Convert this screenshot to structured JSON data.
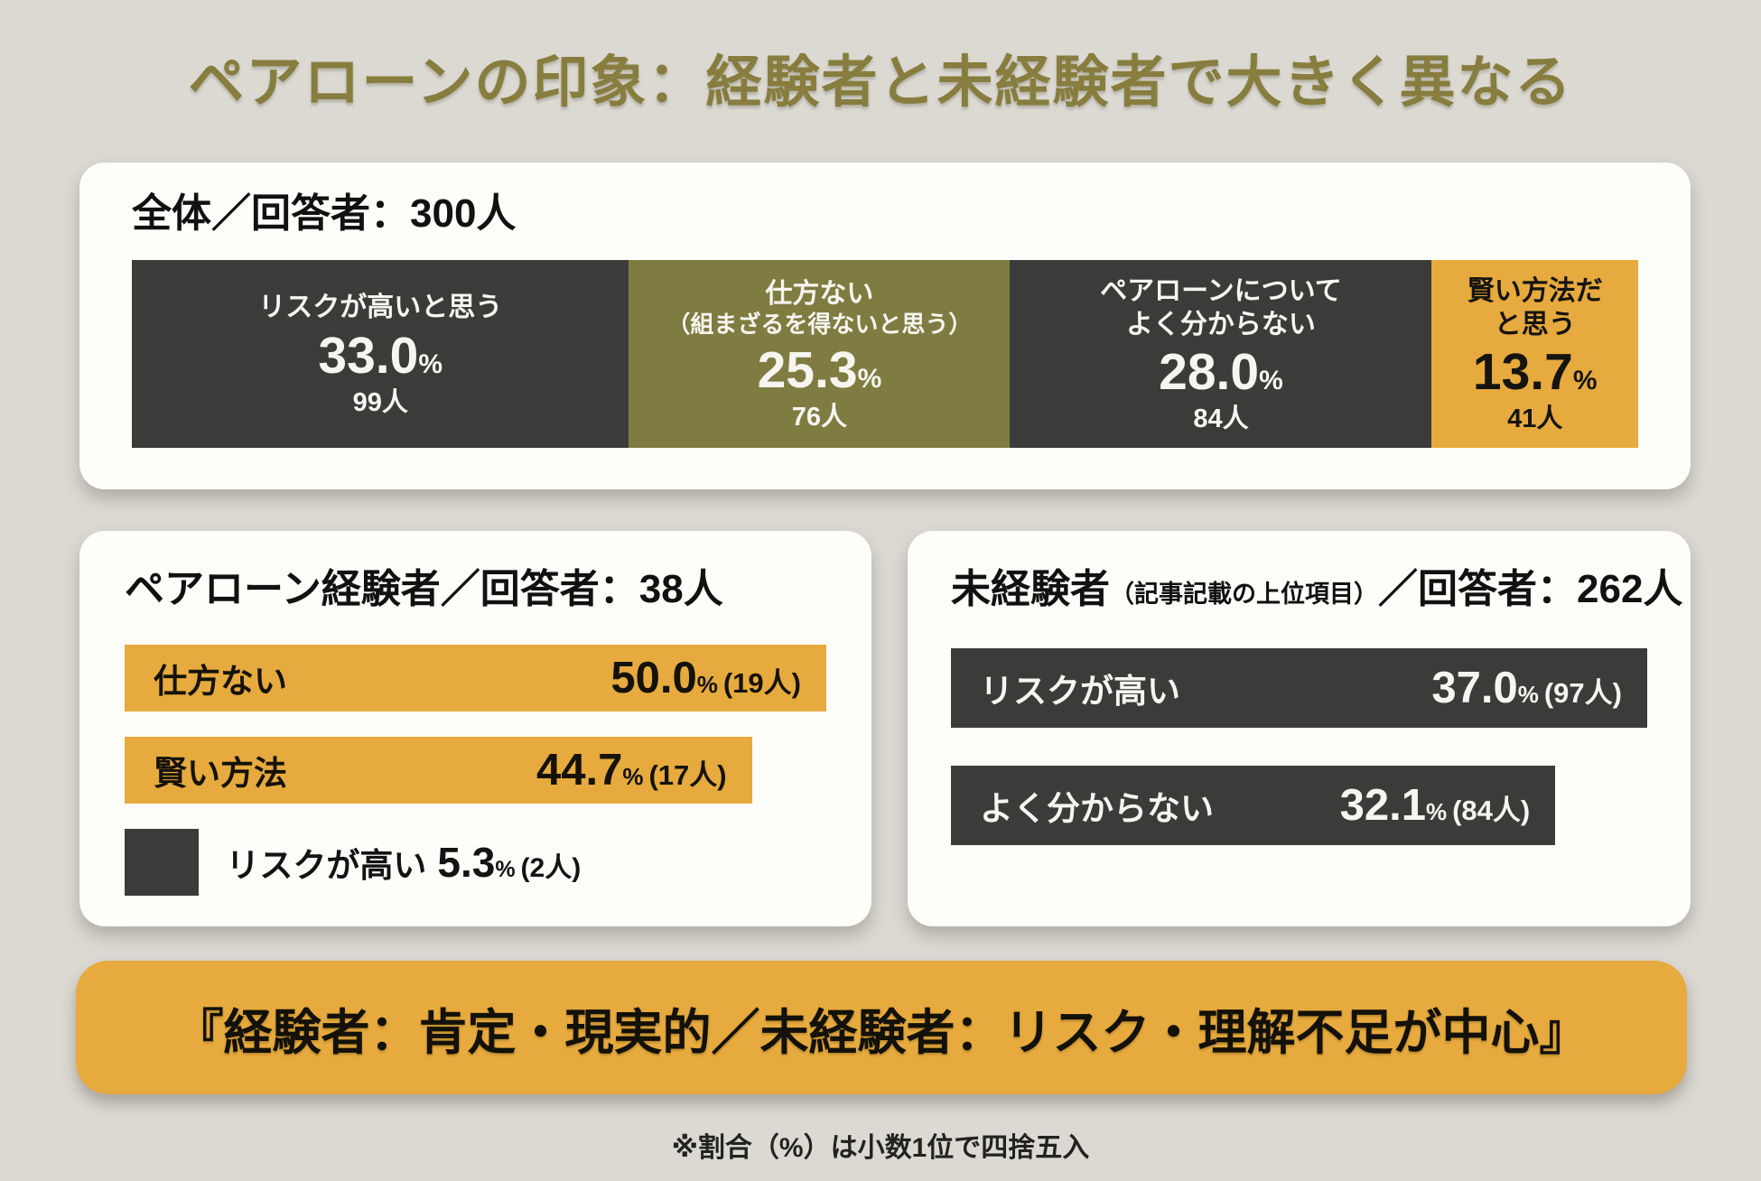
{
  "title": "ペアローンの印象：経験者と未経験者で大きく異なる",
  "units": {
    "percent": "%"
  },
  "colors": {
    "background": "#dbd9d2",
    "card": "#fdfdfa",
    "dark": "#3b3b39",
    "olive": "#7f7c41",
    "orange": "#e6aa3e",
    "title": "#877d3e"
  },
  "overall": {
    "header": "全体／回答者：300人",
    "segments": [
      {
        "label_lines": [
          "リスクが高いと思う"
        ],
        "pct": "33.0",
        "count": "99人",
        "value": 33.0,
        "width": "33.0%",
        "color": "#3b3b39"
      },
      {
        "label_lines": [
          "仕方ない",
          "（組まざるを得ないと思う）"
        ],
        "pct": "25.3",
        "count": "76人",
        "value": 25.3,
        "width": "25.3%",
        "color": "#7f7c41"
      },
      {
        "label_lines": [
          "ペアローンについて",
          "よく分からない"
        ],
        "pct": "28.0",
        "count": "84人",
        "value": 28.0,
        "width": "28.0%",
        "color": "#3b3b39"
      },
      {
        "label_lines": [
          "賢い方法だ",
          "と思う"
        ],
        "pct": "13.7",
        "count": "41人",
        "value": 13.7,
        "width": "13.7%",
        "color": "#e6aa3e"
      }
    ]
  },
  "experienced": {
    "header": "ペアローン経験者／回答者：38人",
    "bars": [
      {
        "label": "仕方ない",
        "pct": "50.0",
        "count": "(19人)",
        "value": 50.0,
        "width": "100%"
      },
      {
        "label": "賢い方法",
        "pct": "44.7",
        "count": "(17人)",
        "value": 44.7,
        "width": "89.4%"
      },
      {
        "label": "リスクが高い",
        "pct": "5.3",
        "count": "(2人)",
        "value": 5.3,
        "width": "10.6%"
      }
    ]
  },
  "inexperienced": {
    "header_main": "未経験者",
    "header_note": "（記事記載の上位項目）",
    "header_rest": "／回答者：262人",
    "bars": [
      {
        "label": "リスクが高い",
        "pct": "37.0",
        "count": "(97人)",
        "value": 37.0,
        "width": "100%"
      },
      {
        "label": "よく分からない",
        "pct": "32.1",
        "count": "(84人)",
        "value": 32.1,
        "width": "86.8%"
      }
    ]
  },
  "conclusion": "『経験者：肯定・現実的／未経験者：リスク・理解不足が中心』",
  "footnote": "※割合（%）は小数1位で四捨五入",
  "chart_data": [
    {
      "type": "bar",
      "subtype": "horizontal-stacked",
      "title": "全体／回答者：300人",
      "categories": [
        "リスクが高いと思う",
        "仕方ない（組まざるを得ないと思う）",
        "ペアローンについてよく分からない",
        "賢い方法だと思う"
      ],
      "values": [
        33.0,
        25.3,
        28.0,
        13.7
      ],
      "counts": [
        99,
        76,
        84,
        41
      ],
      "unit": "%",
      "total_respondents": 300,
      "colors": [
        "#3b3b39",
        "#7f7c41",
        "#3b3b39",
        "#e6aa3e"
      ]
    },
    {
      "type": "bar",
      "subtype": "horizontal",
      "title": "ペアローン経験者／回答者：38人",
      "categories": [
        "仕方ない",
        "賢い方法",
        "リスクが高い"
      ],
      "values": [
        50.0,
        44.7,
        5.3
      ],
      "counts": [
        19,
        17,
        2
      ],
      "unit": "%",
      "total_respondents": 38,
      "xlim": [
        0,
        50
      ],
      "colors": [
        "#e6aa3e",
        "#e6aa3e",
        "#3b3b39"
      ]
    },
    {
      "type": "bar",
      "subtype": "horizontal",
      "title": "未経験者（記事記載の上位項目）／回答者：262人",
      "categories": [
        "リスクが高い",
        "よく分からない"
      ],
      "values": [
        37.0,
        32.1
      ],
      "counts": [
        97,
        84
      ],
      "unit": "%",
      "total_respondents": 262,
      "xlim": [
        0,
        37
      ],
      "colors": [
        "#3b3b39",
        "#3b3b39"
      ]
    }
  ]
}
